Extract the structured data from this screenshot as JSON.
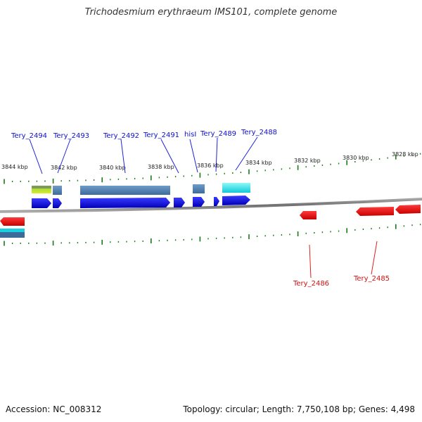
{
  "title": "Trichodesmium erythraeum IMS101, complete genome",
  "footer": {
    "accession": "Accession: NC_008312",
    "info": "Topology: circular; Length: 7,750,108 bp; Genes: 4,498"
  },
  "colors": {
    "forward_gene": "#1010ee",
    "reverse_gene": "#ee1111",
    "forward_label": "#1010cc",
    "reverse_label": "#cc1111",
    "tick": "#1a7a1a",
    "backbone": "#888888"
  },
  "scale_ticks": [
    "3844 kbp",
    "3842 kbp",
    "3840 kbp",
    "3838 kbp",
    "3836 kbp",
    "3834 kbp",
    "3832 kbp",
    "3830 kbp",
    "3828 kbp"
  ],
  "forward_labels": [
    "Tery_2494",
    "Tery_2493",
    "Tery_2492",
    "Tery_2491",
    "hisI",
    "Tery_2489",
    "Tery_2488"
  ],
  "reverse_labels": [
    "Tery_2486",
    "Tery_2485"
  ]
}
